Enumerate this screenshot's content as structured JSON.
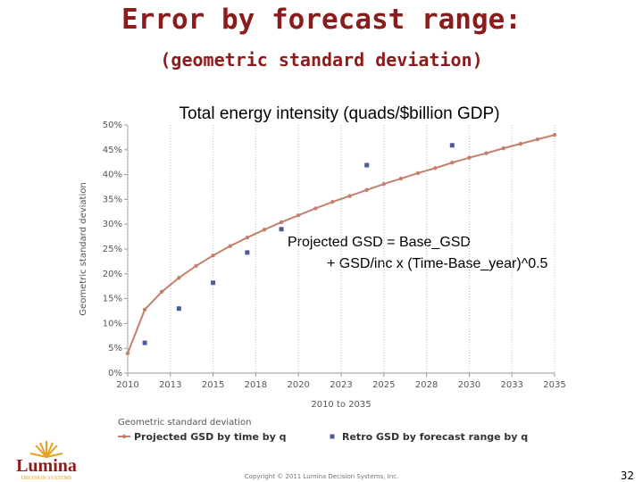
{
  "slide": {
    "title": "Error by forecast range:",
    "subtitle": "(geometric standard deviation)",
    "copyright": "Copyright © 2011 Lumina Decision Systems, Inc.",
    "page_number": 32,
    "logo": {
      "name": "Lumina",
      "tagline": "DECISION SYSTEMS"
    }
  },
  "chart_data": {
    "type": "line",
    "title": "Total energy intensity (quads/$billion GDP)",
    "annotation": [
      "Projected GSD  = Base_GSD",
      "+ GSD/inc x (Time-Base_year)^0.5"
    ],
    "xlabel": "2010 to 2035",
    "ylabel": "Geometric standard deviation",
    "legend_title": "Geometric standard deviation",
    "xlim": [
      2010,
      2035
    ],
    "ylim": [
      0,
      50
    ],
    "grid": "x",
    "xticks": [
      2010,
      {
        "value": 2012.5,
        "label": "2013"
      },
      2015,
      {
        "value": 2017.5,
        "label": "2018"
      },
      2020,
      {
        "value": 2022.5,
        "label": "2023"
      },
      2025,
      {
        "value": 2027.5,
        "label": "2028"
      },
      2030,
      {
        "value": 2032.5,
        "label": "2033"
      },
      2035
    ],
    "yticks": [
      {
        "value": 0,
        "label": "0%"
      },
      {
        "value": 5,
        "label": "5%"
      },
      {
        "value": 10,
        "label": "10%"
      },
      {
        "value": 15,
        "label": "15%"
      },
      {
        "value": 20,
        "label": "20%"
      },
      {
        "value": 25,
        "label": "25%"
      },
      {
        "value": 30,
        "label": "30%"
      },
      {
        "value": 35,
        "label": "35%"
      },
      {
        "value": 40,
        "label": "40%"
      },
      {
        "value": 45,
        "label": "45%"
      },
      {
        "value": 50,
        "label": "50%"
      }
    ],
    "series": [
      {
        "name": "Projected GSD by time by q",
        "color": "#c4806c",
        "marker": "circle",
        "line": true,
        "x": [
          2010,
          2011,
          2012,
          2013,
          2014,
          2015,
          2016,
          2017,
          2018,
          2019,
          2020,
          2021,
          2022,
          2023,
          2024,
          2025,
          2026,
          2027,
          2028,
          2029,
          2030,
          2031,
          2032,
          2033,
          2034,
          2035
        ],
        "values": [
          4.0,
          12.8,
          16.4,
          19.2,
          21.6,
          23.7,
          25.6,
          27.3,
          28.9,
          30.4,
          31.8,
          33.2,
          34.5,
          35.7,
          36.9,
          38.1,
          39.2,
          40.3,
          41.3,
          42.4,
          43.4,
          44.3,
          45.3,
          46.2,
          47.1,
          48.0
        ]
      },
      {
        "name": "Retro GSD by forecast range by q",
        "color": "#4d5a96",
        "marker": "square",
        "line": false,
        "x": [
          2011,
          2013,
          2015,
          2017,
          2019,
          2024,
          2029
        ],
        "values": [
          6.1,
          13.0,
          18.2,
          24.3,
          29.0,
          41.9,
          45.9
        ]
      }
    ]
  }
}
